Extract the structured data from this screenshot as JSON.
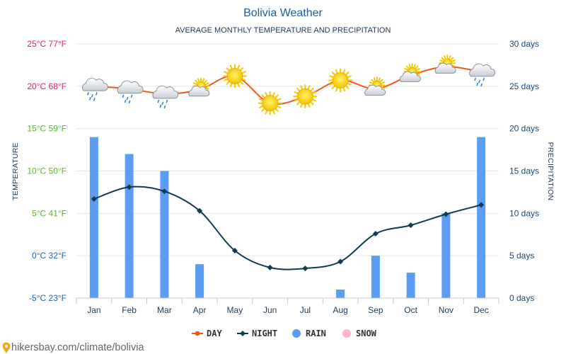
{
  "chart_data": {
    "type": "line",
    "title": "Bolivia Weather",
    "subtitle": "AVERAGE MONTHLY TEMPERATURE AND PRECIPITATION",
    "categories": [
      "Jan",
      "Feb",
      "Mar",
      "Apr",
      "May",
      "Jun",
      "Jul",
      "Aug",
      "Sep",
      "Oct",
      "Nov",
      "Dec"
    ],
    "series": [
      {
        "name": "DAY",
        "kind": "line",
        "unit": "°C",
        "color": "#f05a1a",
        "values": [
          20.0,
          19.7,
          19.1,
          19.6,
          21.2,
          18.0,
          18.8,
          20.7,
          19.7,
          21.3,
          22.3,
          21.7
        ]
      },
      {
        "name": "NIGHT",
        "kind": "line",
        "unit": "°C",
        "color": "#0d3b4f",
        "values": [
          6.7,
          8.1,
          7.6,
          5.3,
          0.6,
          -1.4,
          -1.5,
          -0.7,
          2.6,
          3.6,
          4.9,
          6.0
        ]
      },
      {
        "name": "RAIN",
        "kind": "bar",
        "unit": "days",
        "color": "#5b9cf5",
        "values": [
          19,
          17,
          15,
          4,
          0,
          0,
          0,
          1,
          5,
          3,
          10,
          19
        ]
      },
      {
        "name": "SNOW",
        "kind": "bar",
        "unit": "days",
        "color": "#ffb6c8",
        "values": [
          0,
          0,
          0,
          0,
          0,
          0,
          0,
          0,
          0,
          0,
          0,
          0
        ]
      }
    ],
    "weather_icons": [
      "cloud-rain",
      "cloud-rain",
      "cloud-rain",
      "sun-cloud",
      "sun",
      "sun",
      "sun",
      "sun",
      "sun-cloud",
      "sun-cloud",
      "sun-cloud",
      "cloud-rain"
    ],
    "y_left": {
      "label": "TEMPERATURE",
      "ylim": [
        -5,
        25
      ],
      "ticks": [
        {
          "value": 25,
          "label": "25°C 77°F",
          "color": "#e0245e"
        },
        {
          "value": 20,
          "label": "20°C 68°F",
          "color": "#e0245e"
        },
        {
          "value": 15,
          "label": "15°C 59°F",
          "color": "#5cb82e"
        },
        {
          "value": 10,
          "label": "10°C 50°F",
          "color": "#5cb82e"
        },
        {
          "value": 5,
          "label": "5°C 41°F",
          "color": "#5cb82e"
        },
        {
          "value": 0,
          "label": "0°C 32°F",
          "color": "#1f5fb8"
        },
        {
          "value": -5,
          "label": "-5°C 23°F",
          "color": "#1f5fb8"
        }
      ]
    },
    "y_right": {
      "label": "PRECIPITATION",
      "ylim": [
        0,
        30
      ],
      "ticks": [
        {
          "value": 30,
          "label": "30 days"
        },
        {
          "value": 25,
          "label": "25 days"
        },
        {
          "value": 20,
          "label": "20 days"
        },
        {
          "value": 15,
          "label": "15 days"
        },
        {
          "value": 10,
          "label": "10 days"
        },
        {
          "value": 5,
          "label": "5 days"
        },
        {
          "value": 0,
          "label": "0 days"
        }
      ],
      "color": "#1a4a78"
    },
    "grid": true,
    "legend": {
      "position": "bottom-center",
      "items": [
        "DAY",
        "NIGHT",
        "RAIN",
        "SNOW"
      ]
    }
  },
  "footer": {
    "source": "hikersbay.com/climate/bolivia"
  },
  "colors": {
    "title": "#1f5f9b",
    "month_label": "#1a3a5c",
    "grid": "#e6e6e6"
  }
}
